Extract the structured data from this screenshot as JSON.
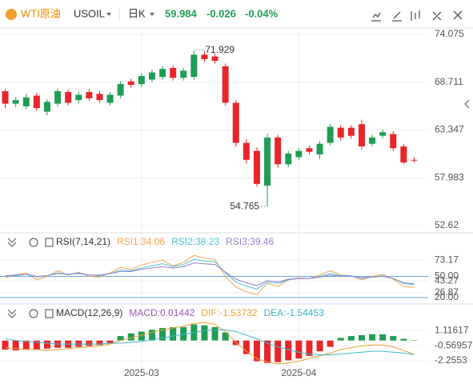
{
  "header": {
    "symbol": "WTI原油",
    "code": "USOIL",
    "period": "日K",
    "price": "59.984",
    "change": "-0.026",
    "change_pct": "-0.04%"
  },
  "chart_data": [
    {
      "type": "candlestick",
      "categories": [
        null,
        null,
        null,
        null,
        null,
        null,
        null,
        null,
        null,
        null,
        null,
        null,
        null,
        "2025-03",
        null,
        null,
        null,
        null,
        null,
        null,
        null,
        null,
        null,
        null,
        null,
        null,
        null,
        null,
        "2025-04",
        null,
        null,
        null,
        null,
        null,
        null,
        null,
        null,
        null,
        null,
        null
      ],
      "open": [
        67.7,
        66.3,
        66.0,
        67.2,
        65.4,
        66.3,
        67.6,
        66.7,
        67.6,
        67.4,
        66.4,
        67.2,
        68.8,
        68.5,
        69.0,
        69.3,
        70.3,
        69.2,
        69.3,
        71.8,
        71.6,
        70.5,
        66.4,
        61.9,
        61.0,
        57.1,
        62.5,
        59.5,
        60.3,
        61.3,
        60.6,
        61.9,
        63.6,
        63.6,
        64.0,
        61.8,
        62.7,
        62.9,
        61.5,
        60.0
      ],
      "high": [
        68.0,
        67.0,
        67.4,
        67.5,
        66.8,
        68.0,
        67.9,
        67.6,
        67.9,
        67.7,
        67.6,
        68.8,
        69.1,
        69.7,
        70.1,
        70.5,
        70.6,
        70.3,
        72.3,
        72.2,
        71.929,
        70.8,
        66.7,
        62.3,
        61.4,
        62.9,
        62.8,
        61.0,
        61.3,
        61.6,
        62.1,
        64.0,
        63.9,
        63.9,
        64.5,
        62.8,
        63.4,
        63.2,
        61.8,
        60.3
      ],
      "low": [
        65.8,
        65.9,
        65.7,
        65.5,
        65.0,
        66.0,
        66.1,
        66.3,
        66.6,
        66.4,
        66.1,
        66.9,
        68.1,
        68.2,
        68.7,
        69.0,
        68.9,
        68.9,
        69.0,
        71.0,
        70.8,
        66.1,
        61.5,
        59.6,
        57.0,
        54.765,
        59.1,
        59.2,
        60.0,
        60.6,
        60.1,
        61.6,
        62.2,
        62.4,
        61.2,
        61.5,
        62.4,
        61.0,
        59.5,
        59.7
      ],
      "close": [
        66.3,
        66.7,
        67.0,
        65.8,
        66.5,
        67.7,
        66.4,
        67.3,
        66.9,
        66.7,
        67.3,
        68.5,
        68.4,
        69.4,
        69.8,
        70.2,
        69.2,
        70.0,
        71.8,
        71.3,
        71.1,
        66.4,
        61.9,
        60.0,
        57.3,
        62.5,
        59.5,
        60.7,
        61.0,
        60.9,
        61.8,
        63.7,
        62.5,
        62.7,
        61.5,
        62.5,
        63.1,
        61.3,
        59.7,
        59.984
      ],
      "up_color": "#1f9d55",
      "down_color": "#e8262a",
      "max_label": "71.929",
      "min_label": "54.765",
      "ylim": [
        51.9,
        74.79
      ],
      "yticks": [
        74.075,
        68.711,
        63.347,
        57.983,
        52.62
      ],
      "grid": true
    },
    {
      "type": "line",
      "title": "RSI(7,14,21)",
      "series": [
        {
          "name": "RSI1:34.06",
          "color": "#f5a54a",
          "values": [
            48,
            52,
            55,
            45,
            50,
            58,
            52,
            56,
            50,
            49,
            55,
            63,
            60,
            66,
            70,
            73,
            65,
            70,
            80,
            76,
            74,
            50,
            35,
            28,
            24,
            40,
            36,
            45,
            48,
            47,
            52,
            58,
            52,
            51,
            45,
            50,
            53,
            46,
            36,
            34.06
          ]
        },
        {
          "name": "RSI2:38.23",
          "color": "#4cc3d9",
          "values": [
            50,
            51,
            53,
            49,
            51,
            55,
            53,
            55,
            52,
            51,
            54,
            59,
            58,
            62,
            65,
            68,
            64,
            67,
            74,
            72,
            71,
            55,
            42,
            36,
            32,
            42,
            40,
            45,
            47,
            47,
            50,
            54,
            51,
            51,
            47,
            49,
            51,
            47,
            40,
            38.23
          ]
        },
        {
          "name": "RSI3:39.46",
          "color": "#9b7fd0",
          "values": [
            51,
            52,
            53,
            50,
            51,
            54,
            53,
            54,
            52,
            52,
            54,
            57,
            57,
            60,
            62,
            64,
            62,
            64,
            69,
            68,
            67,
            56,
            46,
            41,
            37,
            44,
            42,
            46,
            47,
            47,
            49,
            52,
            50,
            50,
            48,
            49,
            50,
            47,
            41,
            39.46
          ]
        }
      ],
      "ylim": [
        13,
        87
      ],
      "yticks": [
        73.17,
        {
          "value": 50,
          "label": "50.00"
        },
        43.27,
        26.87,
        {
          "value": 20,
          "label": "20.00"
        }
      ],
      "grid": true
    },
    {
      "type": "bar",
      "title": "MACD(12,26,9)",
      "bar_name": "MACD:0.01442",
      "bar_name_color": "#9b59b6",
      "up_color": "#1f9d55",
      "down_color": "#e8262a",
      "values": [
        -1.0,
        -1.1,
        -1.0,
        -1.0,
        -0.9,
        -0.8,
        -0.8,
        -0.7,
        -0.6,
        -0.5,
        -0.3,
        0.5,
        0.8,
        1.0,
        1.2,
        1.4,
        1.5,
        1.5,
        1.8,
        1.7,
        1.5,
        0.9,
        -0.5,
        -1.5,
        -2.3,
        -2.5,
        -2.4,
        -2.2,
        -2.0,
        -1.7,
        -1.2,
        -0.7,
        0.3,
        0.5,
        0.6,
        0.7,
        0.7,
        0.5,
        0.2,
        0.01442
      ],
      "series": [
        {
          "name": "DIF:-1.53732",
          "color": "#f0a030",
          "values": [
            -0.8,
            -0.9,
            -1.0,
            -1.0,
            -1.1,
            -1.0,
            -0.9,
            -0.8,
            -0.7,
            -0.6,
            -0.4,
            0.0,
            0.3,
            0.6,
            0.9,
            1.2,
            1.4,
            1.6,
            1.9,
            2.0,
            1.8,
            1.0,
            -0.2,
            -1.2,
            -2.0,
            -2.4,
            -2.6,
            -2.5,
            -2.3,
            -2.0,
            -1.7,
            -1.4,
            -1.0,
            -0.8,
            -0.6,
            -0.5,
            -0.5,
            -0.7,
            -1.1,
            -1.53732
          ]
        },
        {
          "name": "DEA:-1.54453",
          "color": "#3cb6c8",
          "values": [
            0.2,
            0.0,
            -0.1,
            -0.2,
            -0.3,
            -0.4,
            -0.4,
            -0.4,
            -0.4,
            -0.4,
            -0.3,
            -0.3,
            -0.2,
            -0.1,
            0.1,
            0.3,
            0.5,
            0.7,
            0.9,
            1.1,
            1.2,
            1.2,
            1.0,
            0.6,
            0.2,
            -0.3,
            -0.7,
            -1.0,
            -1.3,
            -1.5,
            -1.6,
            -1.6,
            -1.5,
            -1.4,
            -1.3,
            -1.2,
            -1.2,
            -1.3,
            -1.4,
            -1.54453
          ]
        }
      ],
      "ylim": [
        -3.5,
        3.8
      ],
      "yticks": [
        1.11617,
        -0.56957,
        -2.2553
      ],
      "grid": true
    }
  ]
}
